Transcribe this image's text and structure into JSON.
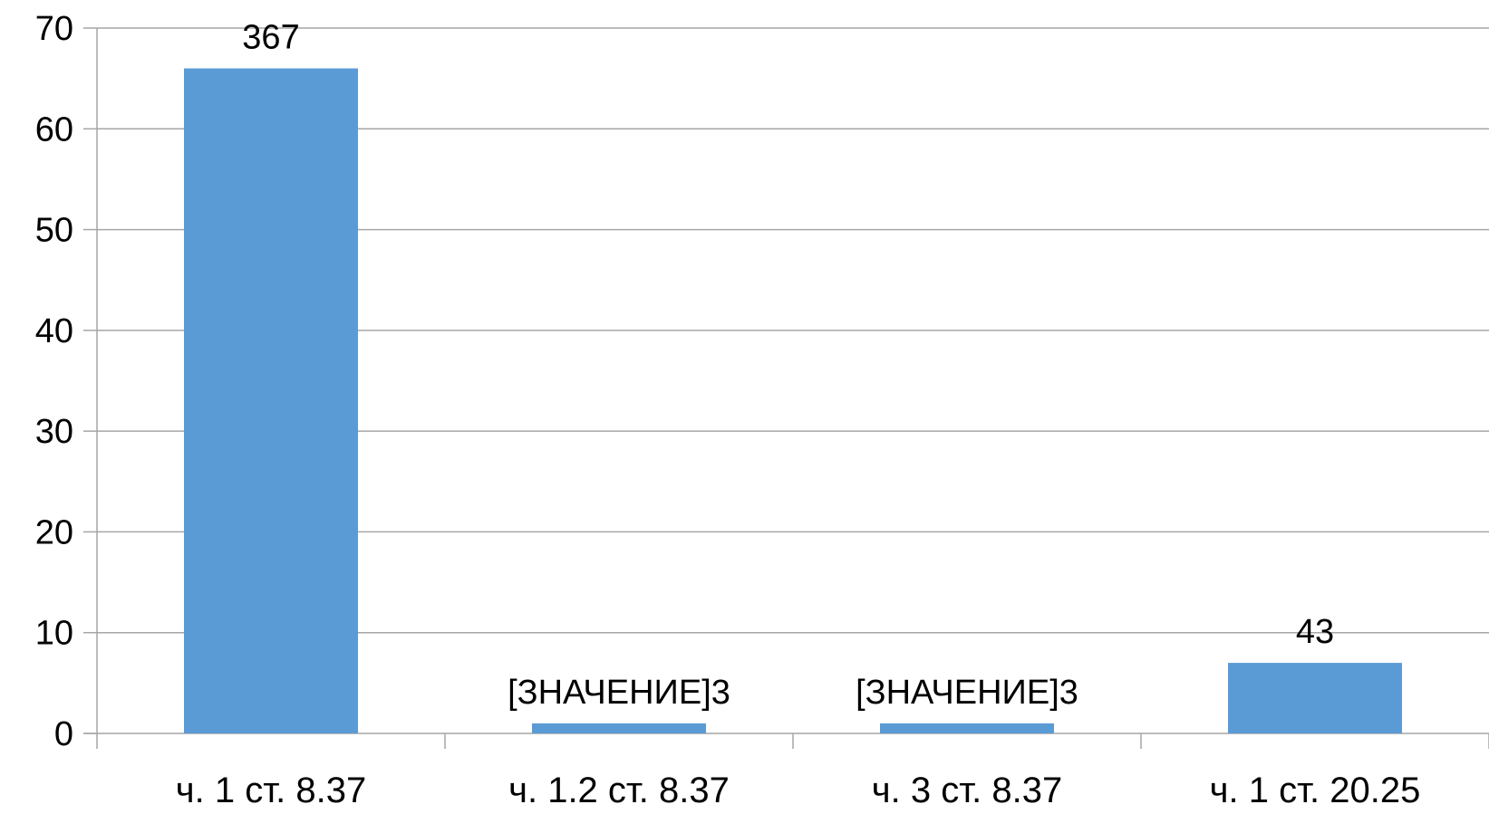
{
  "chart_data": {
    "type": "bar",
    "categories": [
      "ч. 1 ст. 8.37",
      "ч. 1.2 ст. 8.37",
      "ч. 3 ст. 8.37",
      "ч. 1 ст. 20.25"
    ],
    "values": [
      66,
      1,
      1,
      7
    ],
    "data_labels": [
      "367",
      "[ЗНАЧЕНИЕ]3",
      "[ЗНАЧЕНИЕ]3",
      "43"
    ],
    "yticks": [
      "0",
      "10",
      "20",
      "30",
      "40",
      "50",
      "60",
      "70"
    ],
    "ylim": [
      0,
      70
    ],
    "grid": true,
    "legend": "none",
    "bar_color": "#5B9BD5",
    "title": "",
    "xlabel": "",
    "ylabel": ""
  }
}
